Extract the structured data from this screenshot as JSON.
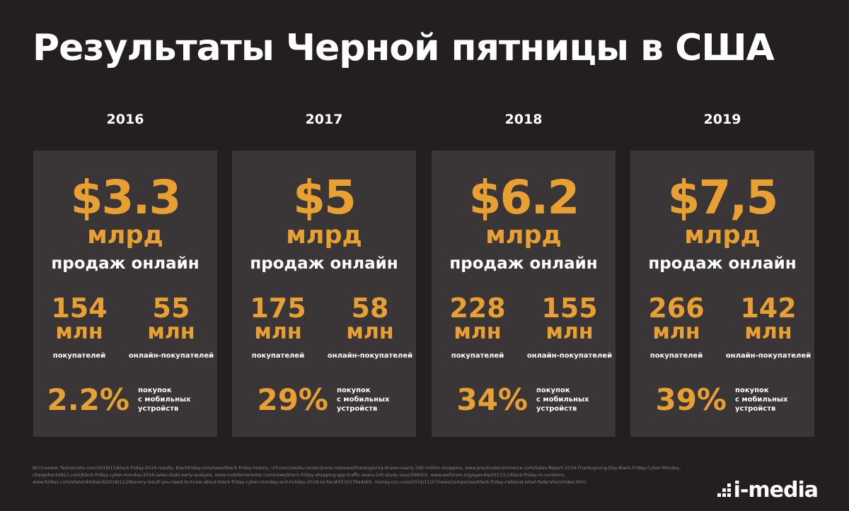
{
  "title": "Результаты Черной пятницы в США",
  "columns": [
    {
      "year": "2016",
      "amount": "$3.3",
      "unit": "млрд",
      "sublabel": "продаж онлайн",
      "shoppers": {
        "value": "154",
        "unit": "млн",
        "label": "покупателей"
      },
      "online_shoppers": {
        "value": "55",
        "unit": "млн",
        "label": "онлайн-покупателей"
      },
      "mobile": {
        "percent": "2.2%",
        "line1": "покупок",
        "line2": "с мобильных",
        "line3": "устройств"
      }
    },
    {
      "year": "2017",
      "amount": "$5",
      "unit": "млрд",
      "sublabel": "продаж онлайн",
      "shoppers": {
        "value": "175",
        "unit": "млн",
        "label": "покупателей"
      },
      "online_shoppers": {
        "value": "58",
        "unit": "млн",
        "label": "онлайн-покупателей"
      },
      "mobile": {
        "percent": "29%",
        "line1": "покупок",
        "line2": "с мобильных",
        "line3": "устройств"
      }
    },
    {
      "year": "2018",
      "amount": "$6.2",
      "unit": "млрд",
      "sublabel": "продаж онлайн",
      "shoppers": {
        "value": "228",
        "unit": "млн",
        "label": "покупателей"
      },
      "online_shoppers": {
        "value": "155",
        "unit": "млн",
        "label": "онлайн-покупателей"
      },
      "mobile": {
        "percent": "34%",
        "line1": "покупок",
        "line2": "с мобильных",
        "line3": "устройств"
      }
    },
    {
      "year": "2019",
      "amount": "$7,5",
      "unit": "млрд",
      "sublabel": "продаж онлайн",
      "shoppers": {
        "value": "266",
        "unit": "млн",
        "label": "покупателей"
      },
      "online_shoppers": {
        "value": "142",
        "unit": "млн",
        "label": "онлайн-покупателей"
      },
      "mobile": {
        "percent": "39%",
        "line1": "покупок",
        "line2": "с мобильных",
        "line3": "устройств"
      }
    }
  ],
  "sources": [
    "Источники: fashionista.com/2016/11/black-friday-2016-results, blackfriday.com/news/black-friday-history, nrf.com/media-center/press-releases/thanksgiving-draws-nearly-190-million-shoppers, www.practicalecommerce.com/Sales-Report-2016-Thanksgiving-Day-Black-Friday-Cyber-Monday,",
    "chargebacks911.com/black-friday-cyber-monday-2016-sales-stats-early-analysis, www.mobilemarketer.com/news/black-friday-shopping-app-traffic-soars-240-study-says/568501, www.weforum.org/agenda/2017/11/black-friday-in-numbers,",
    "www.forbes.com/sites/nikkibaird/2018/11/28/every-result-you-need-to-know-about-black-friday-cyber-monday-and-holiday-2018-so-far/#5530179a4eb5, money.cnn.com/2016/11/27/news/companies/black-friday-national-retail-federation/index.html"
  ],
  "logo_text": "i-media",
  "colors": {
    "background": "#231f20",
    "card": "#3a3637",
    "accent": "#e8a033",
    "text": "#ffffff"
  },
  "chart_data": {
    "type": "table",
    "title": "Результаты Черной пятницы в США",
    "categories": [
      "2016",
      "2017",
      "2018",
      "2019"
    ],
    "series": [
      {
        "name": "млрд продаж онлайн",
        "values": [
          3.3,
          5,
          6.2,
          7.5
        ]
      },
      {
        "name": "покупателей",
        "values": [
          154,
          175,
          228,
          266
        ]
      },
      {
        "name": "онлайн-покупателей",
        "values": [
          55,
          58,
          155,
          142
        ]
      },
      {
        "name": "покупок с мобильных устройств",
        "values": [
          2.2,
          29,
          34,
          39
        ]
      }
    ]
  }
}
